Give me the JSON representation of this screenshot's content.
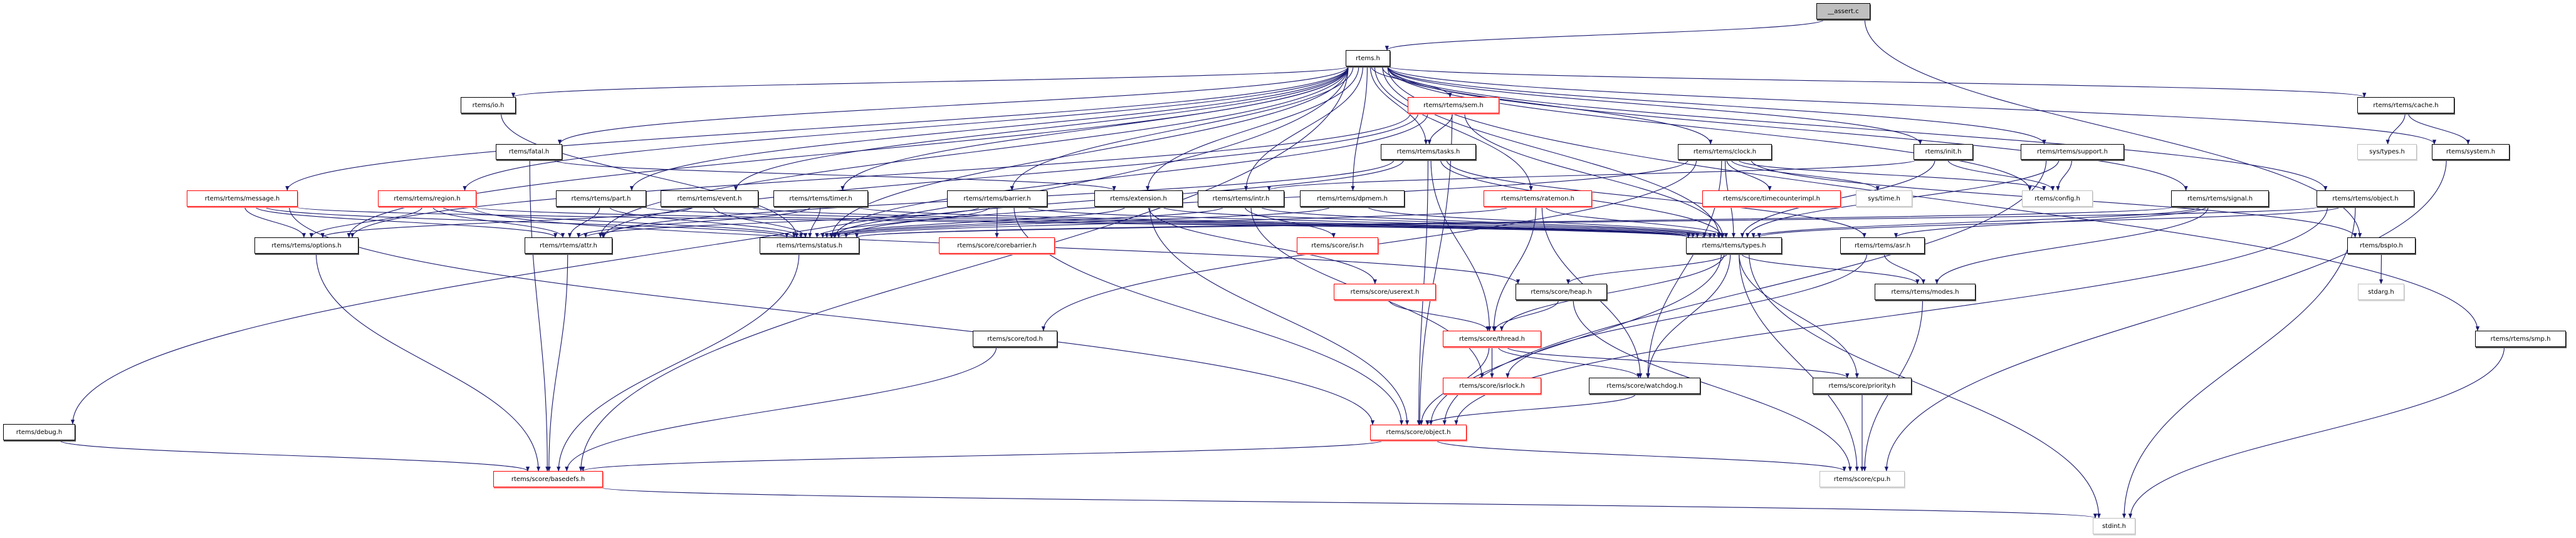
{
  "colors": {
    "edge": "#191970",
    "red_border": "#ff0000",
    "gray_border": "#bfbfbf",
    "root_fill": "#bfbfbf"
  },
  "nodes": [
    {
      "id": "assert",
      "label": "__assert.c",
      "style": "root"
    },
    {
      "id": "rtems",
      "label": "rtems.h",
      "style": "black"
    },
    {
      "id": "io",
      "label": "rtems/io.h",
      "style": "black"
    },
    {
      "id": "fatal",
      "label": "rtems/fatal.h",
      "style": "black"
    },
    {
      "id": "message",
      "label": "rtems/rtems/message.h",
      "style": "red"
    },
    {
      "id": "region",
      "label": "rtems/rtems/region.h",
      "style": "red"
    },
    {
      "id": "part",
      "label": "rtems/rtems/part.h",
      "style": "black"
    },
    {
      "id": "event",
      "label": "rtems/rtems/event.h",
      "style": "black"
    },
    {
      "id": "timer",
      "label": "rtems/rtems/timer.h",
      "style": "black"
    },
    {
      "id": "options",
      "label": "rtems/rtems/options.h",
      "style": "black"
    },
    {
      "id": "attr",
      "label": "rtems/rtems/attr.h",
      "style": "black"
    },
    {
      "id": "status",
      "label": "rtems/rtems/status.h",
      "style": "black"
    },
    {
      "id": "debug",
      "label": "rtems/debug.h",
      "style": "black"
    },
    {
      "id": "basedefs",
      "label": "rtems/score/basedefs.h",
      "style": "red"
    },
    {
      "id": "sem",
      "label": "rtems/rtems/sem.h",
      "style": "red"
    },
    {
      "id": "tasks",
      "label": "rtems/rtems/tasks.h",
      "style": "black"
    },
    {
      "id": "clock",
      "label": "rtems/rtems/clock.h",
      "style": "black"
    },
    {
      "id": "barrier",
      "label": "rtems/rtems/barrier.h",
      "style": "black"
    },
    {
      "id": "extension",
      "label": "rtems/extension.h",
      "style": "black"
    },
    {
      "id": "intr",
      "label": "rtems/rtems/intr.h",
      "style": "black"
    },
    {
      "id": "dpmem",
      "label": "rtems/rtems/dpmem.h",
      "style": "black"
    },
    {
      "id": "ratemon",
      "label": "rtems/rtems/ratemon.h",
      "style": "red"
    },
    {
      "id": "timecounterimpl",
      "label": "rtems/score/timecounterimpl.h",
      "style": "red"
    },
    {
      "id": "corebarrier",
      "label": "rtems/score/corebarrier.h",
      "style": "red"
    },
    {
      "id": "isr",
      "label": "rtems/score/isr.h",
      "style": "red"
    },
    {
      "id": "types",
      "label": "rtems/rtems/types.h",
      "style": "black"
    },
    {
      "id": "init",
      "label": "rtems/init.h",
      "style": "black"
    },
    {
      "id": "support",
      "label": "rtems/rtems/support.h",
      "style": "black"
    },
    {
      "id": "cache",
      "label": "rtems/rtems/cache.h",
      "style": "black"
    },
    {
      "id": "systypes",
      "label": "sys/types.h",
      "style": "gray"
    },
    {
      "id": "system",
      "label": "rtems/system.h",
      "style": "black"
    },
    {
      "id": "systime",
      "label": "sys/time.h",
      "style": "gray"
    },
    {
      "id": "config",
      "label": "rtems/config.h",
      "style": "gray"
    },
    {
      "id": "signal",
      "label": "rtems/rtems/signal.h",
      "style": "black"
    },
    {
      "id": "robject",
      "label": "rtems/rtems/object.h",
      "style": "black"
    },
    {
      "id": "asr",
      "label": "rtems/rtems/asr.h",
      "style": "black"
    },
    {
      "id": "bspio",
      "label": "rtems/bspIo.h",
      "style": "black"
    },
    {
      "id": "modes",
      "label": "rtems/rtems/modes.h",
      "style": "black"
    },
    {
      "id": "stdarg",
      "label": "stdarg.h",
      "style": "gray"
    },
    {
      "id": "smp",
      "label": "rtems/rtems/smp.h",
      "style": "black"
    },
    {
      "id": "priority",
      "label": "rtems/score/priority.h",
      "style": "black"
    },
    {
      "id": "cpu",
      "label": "rtems/score/cpu.h",
      "style": "gray"
    },
    {
      "id": "stdint",
      "label": "stdint.h",
      "style": "gray"
    },
    {
      "id": "userext",
      "label": "rtems/score/userext.h",
      "style": "red"
    },
    {
      "id": "heap",
      "label": "rtems/score/heap.h",
      "style": "black"
    },
    {
      "id": "tod",
      "label": "rtems/score/tod.h",
      "style": "black"
    },
    {
      "id": "thread",
      "label": "rtems/score/thread.h",
      "style": "red"
    },
    {
      "id": "isrlock",
      "label": "rtems/score/isrlock.h",
      "style": "red"
    },
    {
      "id": "watchdog",
      "label": "rtems/score/watchdog.h",
      "style": "black"
    },
    {
      "id": "sobject",
      "label": "rtems/score/object.h",
      "style": "red"
    }
  ],
  "edges": [
    [
      "assert",
      "rtems"
    ],
    [
      "assert",
      "bspio"
    ],
    [
      "rtems",
      "io"
    ],
    [
      "rtems",
      "fatal"
    ],
    [
      "rtems",
      "message"
    ],
    [
      "rtems",
      "region"
    ],
    [
      "rtems",
      "part"
    ],
    [
      "rtems",
      "event"
    ],
    [
      "rtems",
      "timer"
    ],
    [
      "rtems",
      "barrier"
    ],
    [
      "rtems",
      "extension"
    ],
    [
      "rtems",
      "intr"
    ],
    [
      "rtems",
      "dpmem"
    ],
    [
      "rtems",
      "sem"
    ],
    [
      "rtems",
      "tasks"
    ],
    [
      "rtems",
      "ratemon"
    ],
    [
      "rtems",
      "clock"
    ],
    [
      "rtems",
      "init"
    ],
    [
      "rtems",
      "support"
    ],
    [
      "rtems",
      "config"
    ],
    [
      "rtems",
      "signal"
    ],
    [
      "rtems",
      "robject"
    ],
    [
      "rtems",
      "cache"
    ],
    [
      "rtems",
      "system"
    ],
    [
      "rtems",
      "smp"
    ],
    [
      "rtems",
      "debug"
    ],
    [
      "rtems",
      "types"
    ],
    [
      "rtems",
      "status"
    ],
    [
      "rtems",
      "attr"
    ],
    [
      "rtems",
      "options"
    ],
    [
      "rtems",
      "basedefs"
    ],
    [
      "io",
      "status"
    ],
    [
      "fatal",
      "basedefs"
    ],
    [
      "fatal",
      "extension"
    ],
    [
      "message",
      "options"
    ],
    [
      "message",
      "attr"
    ],
    [
      "message",
      "status"
    ],
    [
      "message",
      "types"
    ],
    [
      "message",
      "sobject"
    ],
    [
      "region",
      "options"
    ],
    [
      "region",
      "attr"
    ],
    [
      "region",
      "status"
    ],
    [
      "region",
      "types"
    ],
    [
      "region",
      "heap"
    ],
    [
      "part",
      "attr"
    ],
    [
      "part",
      "status"
    ],
    [
      "part",
      "types"
    ],
    [
      "event",
      "options"
    ],
    [
      "event",
      "status"
    ],
    [
      "event",
      "types"
    ],
    [
      "timer",
      "attr"
    ],
    [
      "timer",
      "status"
    ],
    [
      "timer",
      "types"
    ],
    [
      "barrier",
      "attr"
    ],
    [
      "barrier",
      "status"
    ],
    [
      "barrier",
      "types"
    ],
    [
      "barrier",
      "corebarrier"
    ],
    [
      "barrier",
      "sobject"
    ],
    [
      "extension",
      "status"
    ],
    [
      "extension",
      "types"
    ],
    [
      "extension",
      "userext"
    ],
    [
      "extension",
      "sobject"
    ],
    [
      "intr",
      "status"
    ],
    [
      "intr",
      "types"
    ],
    [
      "intr",
      "isr"
    ],
    [
      "intr",
      "isrlock"
    ],
    [
      "dpmem",
      "status"
    ],
    [
      "dpmem",
      "types"
    ],
    [
      "sem",
      "tasks"
    ],
    [
      "sem",
      "attr"
    ],
    [
      "sem",
      "options"
    ],
    [
      "sem",
      "status"
    ],
    [
      "sem",
      "types"
    ],
    [
      "sem",
      "sobject"
    ],
    [
      "tasks",
      "attr"
    ],
    [
      "tasks",
      "status"
    ],
    [
      "tasks",
      "types"
    ],
    [
      "tasks",
      "asr"
    ],
    [
      "tasks",
      "thread"
    ],
    [
      "tasks",
      "sobject"
    ],
    [
      "clock",
      "status"
    ],
    [
      "clock",
      "types"
    ],
    [
      "clock",
      "config"
    ],
    [
      "clock",
      "timecounterimpl"
    ],
    [
      "clock",
      "systime"
    ],
    [
      "clock",
      "tod"
    ],
    [
      "clock",
      "watchdog"
    ],
    [
      "clock",
      "bspio"
    ],
    [
      "ratemon",
      "status"
    ],
    [
      "ratemon",
      "types"
    ],
    [
      "ratemon",
      "thread"
    ],
    [
      "ratemon",
      "watchdog"
    ],
    [
      "init",
      "config"
    ],
    [
      "init",
      "types"
    ],
    [
      "init",
      "intr"
    ],
    [
      "support",
      "config"
    ],
    [
      "support",
      "types"
    ],
    [
      "support",
      "sobject"
    ],
    [
      "signal",
      "asr"
    ],
    [
      "signal",
      "modes"
    ],
    [
      "signal",
      "status"
    ],
    [
      "signal",
      "types"
    ],
    [
      "robject",
      "status"
    ],
    [
      "robject",
      "types"
    ],
    [
      "robject",
      "sobject"
    ],
    [
      "robject",
      "stdint"
    ],
    [
      "cache",
      "systypes"
    ],
    [
      "cache",
      "system"
    ],
    [
      "system",
      "cpu"
    ],
    [
      "smp",
      "stdint"
    ],
    [
      "debug",
      "basedefs"
    ],
    [
      "options",
      "basedefs"
    ],
    [
      "attr",
      "basedefs"
    ],
    [
      "status",
      "basedefs"
    ],
    [
      "types",
      "modes"
    ],
    [
      "types",
      "heap"
    ],
    [
      "types",
      "thread"
    ],
    [
      "types",
      "watchdog"
    ],
    [
      "types",
      "priority"
    ],
    [
      "types",
      "sobject"
    ],
    [
      "types",
      "cpu"
    ],
    [
      "types",
      "stdint"
    ],
    [
      "asr",
      "modes"
    ],
    [
      "asr",
      "isrlock"
    ],
    [
      "modes",
      "cpu"
    ],
    [
      "bspio",
      "stdarg"
    ],
    [
      "userext",
      "thread"
    ],
    [
      "heap",
      "thread"
    ],
    [
      "heap",
      "cpu"
    ],
    [
      "thread",
      "isrlock"
    ],
    [
      "thread",
      "watchdog"
    ],
    [
      "thread",
      "sobject"
    ],
    [
      "thread",
      "priority"
    ],
    [
      "watchdog",
      "sobject"
    ],
    [
      "priority",
      "cpu"
    ],
    [
      "tod",
      "basedefs"
    ],
    [
      "sobject",
      "basedefs"
    ],
    [
      "sobject",
      "cpu"
    ],
    [
      "basedefs",
      "stdint"
    ]
  ]
}
